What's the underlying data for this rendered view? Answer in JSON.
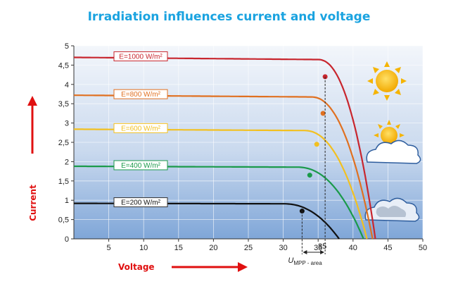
{
  "title": "Irradiation influences current and voltage",
  "chart_data": {
    "type": "line",
    "xlabel": "Voltage",
    "ylabel": "Current",
    "xlim": [
      0,
      50
    ],
    "ylim": [
      0,
      5
    ],
    "xticks": [
      "5",
      "10",
      "15",
      "20",
      "25",
      "30",
      "35",
      "40",
      "45",
      "50"
    ],
    "yticks": [
      "0",
      "0,5",
      "1",
      "1,5",
      "2",
      "2,5",
      "3",
      "3,5",
      "4",
      "4,5",
      "5"
    ],
    "grid": true,
    "series": [
      {
        "name": "E=1000 W/m²",
        "color": "#c8262e",
        "isc": 4.7,
        "voc": 43.2,
        "knee": 35,
        "mpp": [
          36.0,
          4.2
        ]
      },
      {
        "name": "E=800 W/m²",
        "color": "#e07020",
        "isc": 3.72,
        "voc": 42.8,
        "knee": 34,
        "mpp": [
          35.7,
          3.25
        ]
      },
      {
        "name": "E=600 W/m²",
        "color": "#f2c020",
        "isc": 2.84,
        "voc": 42.0,
        "knee": 33,
        "mpp": [
          34.8,
          2.45
        ]
      },
      {
        "name": "E=400 W/m²",
        "color": "#1a9a4a",
        "isc": 1.88,
        "voc": 41.5,
        "knee": 32,
        "mpp": [
          33.8,
          1.65
        ]
      },
      {
        "name": "E=200 W/m²",
        "color": "#111111",
        "isc": 0.92,
        "voc": 38.0,
        "knee": 30,
        "mpp": [
          32.7,
          0.72
        ]
      }
    ],
    "mpp_area": {
      "x_range": [
        32.7,
        36.0
      ],
      "label_main": "U",
      "label_sub": "MPP - area",
      "dimension_label": "35"
    }
  }
}
